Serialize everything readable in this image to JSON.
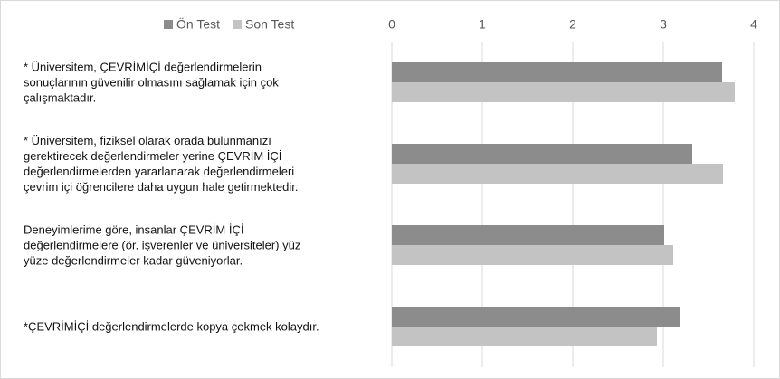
{
  "chart_data": {
    "type": "hbar",
    "categories": [
      "* Üniversitem, ÇEVRİMİÇİ değerlendirmelerin\nsonuçlarının güvenilir olmasını sağlamak için çok\nçalışmaktadır.",
      "* Üniversitem, fiziksel olarak orada bulunmanızı\ngerektirecek değerlendirmeler yerine ÇEVRİM İÇİ\ndeğerlendirmelerden yararlanarak değerlendirmeleri\nçevrim içi öğrencilere daha uygun hale getirmektedir.",
      "Deneyimlerime göre, insanlar ÇEVRİM İÇİ\ndeğerlendirmelere (ör. işverenler ve üniversiteler) yüz\nyüze değerlendirmeler kadar güveniyorlar.",
      "*ÇEVRİMİÇİ değerlendirmelerde kopya çekmek kolaydır."
    ],
    "series": [
      {
        "name": "Ön Test",
        "color": "#8c8c8c",
        "values": [
          3.65,
          3.32,
          3.01,
          3.19
        ]
      },
      {
        "name": "Son Test",
        "color": "#c3c3c3",
        "values": [
          3.79,
          3.66,
          3.11,
          2.93
        ]
      }
    ],
    "xlim": [
      0,
      4
    ],
    "xticks": [
      0,
      1,
      2,
      3,
      4
    ],
    "grid": true,
    "legend": "top"
  }
}
